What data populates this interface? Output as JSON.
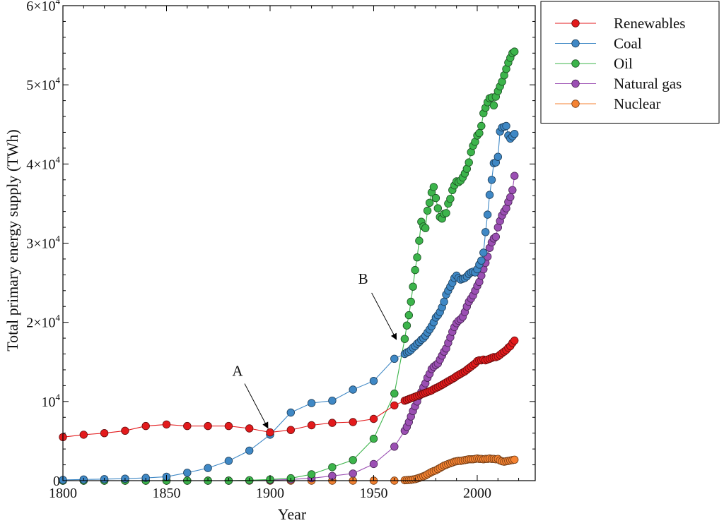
{
  "chart_data": {
    "type": "line",
    "xlabel": "Year",
    "ylabel": "Total primary energy supply (TWh)",
    "xlim": [
      1800,
      2028
    ],
    "ylim": [
      0,
      60000
    ],
    "x_ticks": [
      {
        "value": 1800,
        "label": "1800"
      },
      {
        "value": 1850,
        "label": "1850"
      },
      {
        "value": 1900,
        "label": "1900"
      },
      {
        "value": 1950,
        "label": "1950"
      },
      {
        "value": 2000,
        "label": "2000"
      }
    ],
    "y_ticks": [
      {
        "value": 0,
        "base": "0",
        "exp": ""
      },
      {
        "value": 10000,
        "base": "10",
        "exp": "4"
      },
      {
        "value": 20000,
        "base": "2×10",
        "exp": "4"
      },
      {
        "value": 30000,
        "base": "3×10",
        "exp": "4"
      },
      {
        "value": 40000,
        "base": "4×10",
        "exp": "4"
      },
      {
        "value": 50000,
        "base": "5×10",
        "exp": "4"
      },
      {
        "value": 60000,
        "base": "6×10",
        "exp": "4"
      }
    ],
    "grid": false,
    "legend_position": "outside-top-right",
    "series": [
      {
        "name": "Renewables",
        "color": "#e31a1c",
        "x": [
          1800,
          1810,
          1820,
          1830,
          1840,
          1850,
          1860,
          1870,
          1880,
          1890,
          1900,
          1910,
          1920,
          1930,
          1940,
          1950,
          1960,
          1965,
          1966,
          1967,
          1968,
          1969,
          1970,
          1971,
          1972,
          1973,
          1974,
          1975,
          1976,
          1977,
          1978,
          1979,
          1980,
          1981,
          1982,
          1983,
          1984,
          1985,
          1986,
          1987,
          1988,
          1989,
          1990,
          1991,
          1992,
          1993,
          1994,
          1995,
          1996,
          1997,
          1998,
          1999,
          2000,
          2001,
          2002,
          2003,
          2004,
          2005,
          2006,
          2007,
          2008,
          2009,
          2010,
          2011,
          2012,
          2013,
          2014,
          2015,
          2016,
          2017,
          2018
        ],
        "y": [
          5500,
          5800,
          6000,
          6300,
          6900,
          7100,
          6900,
          6900,
          6900,
          6600,
          6100,
          6400,
          7000,
          7300,
          7400,
          7800,
          9500,
          10100,
          10200,
          10300,
          10400,
          10500,
          10600,
          10700,
          10800,
          10900,
          11000,
          11100,
          11200,
          11300,
          11400,
          11550,
          11700,
          11800,
          11950,
          12100,
          12250,
          12400,
          12550,
          12700,
          12850,
          13000,
          13200,
          13350,
          13500,
          13650,
          13800,
          14000,
          14200,
          14400,
          14600,
          14800,
          15100,
          15200,
          15200,
          15300,
          15200,
          15300,
          15400,
          15500,
          15600,
          15600,
          15700,
          15900,
          16100,
          16300,
          16500,
          16800,
          17000,
          17400,
          17700
        ]
      },
      {
        "name": "Coal",
        "color": "#3f88c5",
        "x": [
          1800,
          1810,
          1820,
          1830,
          1840,
          1850,
          1860,
          1870,
          1880,
          1890,
          1900,
          1910,
          1920,
          1930,
          1940,
          1950,
          1960,
          1965,
          1966,
          1967,
          1968,
          1969,
          1970,
          1971,
          1972,
          1973,
          1974,
          1975,
          1976,
          1977,
          1978,
          1979,
          1980,
          1981,
          1982,
          1983,
          1984,
          1985,
          1986,
          1987,
          1988,
          1989,
          1990,
          1991,
          1992,
          1993,
          1994,
          1995,
          1996,
          1997,
          1998,
          1999,
          2000,
          2001,
          2002,
          2003,
          2004,
          2005,
          2006,
          2007,
          2008,
          2009,
          2010,
          2011,
          2012,
          2013,
          2014,
          2015,
          2016,
          2017,
          2018
        ],
        "y": [
          100,
          150,
          200,
          250,
          350,
          500,
          1000,
          1600,
          2500,
          3800,
          5800,
          8600,
          9800,
          10100,
          11500,
          12600,
          15400,
          16000,
          16200,
          16300,
          16500,
          16800,
          17000,
          17300,
          17500,
          17800,
          18000,
          18300,
          18700,
          19100,
          19500,
          20000,
          20600,
          20900,
          21300,
          21900,
          22600,
          23500,
          24000,
          24500,
          25000,
          25600,
          25900,
          25600,
          25400,
          25500,
          25600,
          25800,
          26100,
          26300,
          26400,
          26300,
          26700,
          27300,
          27800,
          28800,
          31400,
          33600,
          36100,
          38000,
          40100,
          40200,
          40900,
          44100,
          44600,
          44700,
          44800,
          43600,
          43200,
          43500,
          43800
        ]
      },
      {
        "name": "Oil",
        "color": "#3cb44b",
        "x": [
          1800,
          1810,
          1820,
          1830,
          1840,
          1850,
          1860,
          1870,
          1880,
          1890,
          1900,
          1910,
          1920,
          1930,
          1940,
          1950,
          1960,
          1965,
          1966,
          1967,
          1968,
          1969,
          1970,
          1971,
          1972,
          1973,
          1974,
          1975,
          1976,
          1977,
          1978,
          1979,
          1980,
          1981,
          1982,
          1983,
          1984,
          1985,
          1986,
          1987,
          1988,
          1989,
          1990,
          1991,
          1992,
          1993,
          1994,
          1995,
          1996,
          1997,
          1998,
          1999,
          2000,
          2001,
          2002,
          2003,
          2004,
          2005,
          2006,
          2007,
          2008,
          2009,
          2010,
          2011,
          2012,
          2013,
          2014,
          2015,
          2016,
          2017,
          2018
        ],
        "y": [
          0,
          0,
          0,
          0,
          0,
          0,
          0,
          0,
          0,
          50,
          150,
          300,
          800,
          1700,
          2600,
          5300,
          11000,
          17900,
          19600,
          20900,
          22600,
          24500,
          26600,
          28200,
          30300,
          32700,
          32100,
          31900,
          34100,
          35100,
          36400,
          37100,
          35700,
          34400,
          33300,
          33100,
          33700,
          33800,
          35000,
          35600,
          36700,
          37300,
          37800,
          37700,
          37900,
          38300,
          38800,
          39400,
          40200,
          41500,
          42300,
          42800,
          43600,
          43900,
          44800,
          46400,
          47100,
          47800,
          48300,
          48400,
          47400,
          48500,
          49200,
          49800,
          50400,
          51200,
          52000,
          52800,
          53400,
          54000,
          54200
        ]
      },
      {
        "name": "Natural gas",
        "color": "#9b4fb3",
        "x": [
          1800,
          1810,
          1820,
          1830,
          1840,
          1850,
          1860,
          1870,
          1880,
          1890,
          1900,
          1910,
          1920,
          1930,
          1940,
          1950,
          1960,
          1965,
          1966,
          1967,
          1968,
          1969,
          1970,
          1971,
          1972,
          1973,
          1974,
          1975,
          1976,
          1977,
          1978,
          1979,
          1980,
          1981,
          1982,
          1983,
          1984,
          1985,
          1986,
          1987,
          1988,
          1989,
          1990,
          1991,
          1992,
          1993,
          1994,
          1995,
          1996,
          1997,
          1998,
          1999,
          2000,
          2001,
          2002,
          2003,
          2004,
          2005,
          2006,
          2007,
          2008,
          2009,
          2010,
          2011,
          2012,
          2013,
          2014,
          2015,
          2016,
          2017,
          2018
        ],
        "y": [
          0,
          0,
          0,
          0,
          0,
          0,
          0,
          0,
          0,
          30,
          60,
          150,
          300,
          600,
          900,
          2100,
          4300,
          6300,
          6800,
          7400,
          8100,
          8800,
          9400,
          10000,
          10700,
          11200,
          11800,
          12300,
          13000,
          13500,
          14100,
          14400,
          14600,
          14800,
          15300,
          15800,
          16300,
          16700,
          17400,
          18100,
          18800,
          19400,
          19900,
          20200,
          20400,
          20700,
          21300,
          22000,
          22600,
          23000,
          23400,
          24000,
          24600,
          25100,
          25900,
          26700,
          27500,
          28300,
          29400,
          30100,
          30600,
          30800,
          32000,
          32800,
          33500,
          34000,
          34400,
          35200,
          35800,
          36700,
          38500
        ]
      },
      {
        "name": "Nuclear",
        "color": "#f58231",
        "x": [
          1800,
          1810,
          1820,
          1830,
          1840,
          1850,
          1860,
          1870,
          1880,
          1890,
          1900,
          1910,
          1920,
          1930,
          1940,
          1950,
          1960,
          1965,
          1966,
          1967,
          1968,
          1969,
          1970,
          1971,
          1972,
          1973,
          1974,
          1975,
          1976,
          1977,
          1978,
          1979,
          1980,
          1981,
          1982,
          1983,
          1984,
          1985,
          1986,
          1987,
          1988,
          1989,
          1990,
          1991,
          1992,
          1993,
          1994,
          1995,
          1996,
          1997,
          1998,
          1999,
          2000,
          2001,
          2002,
          2003,
          2004,
          2005,
          2006,
          2007,
          2008,
          2009,
          2010,
          2011,
          2012,
          2013,
          2014,
          2015,
          2016,
          2017,
          2018
        ],
        "y": [
          0,
          0,
          0,
          0,
          0,
          0,
          0,
          0,
          0,
          0,
          0,
          0,
          0,
          0,
          0,
          0,
          0,
          50,
          70,
          90,
          110,
          150,
          200,
          270,
          350,
          450,
          550,
          650,
          800,
          950,
          1100,
          1200,
          1300,
          1450,
          1600,
          1750,
          1900,
          2000,
          2100,
          2200,
          2300,
          2400,
          2450,
          2500,
          2500,
          2550,
          2600,
          2650,
          2700,
          2700,
          2700,
          2750,
          2800,
          2750,
          2750,
          2700,
          2750,
          2750,
          2800,
          2750,
          2750,
          2700,
          2750,
          2550,
          2450,
          2400,
          2450,
          2500,
          2550,
          2600,
          2650
        ]
      }
    ],
    "annotations": [
      {
        "text": "A",
        "x": 1900,
        "y": 6100
      },
      {
        "text": "B",
        "x": 1962,
        "y": 17300
      }
    ]
  }
}
